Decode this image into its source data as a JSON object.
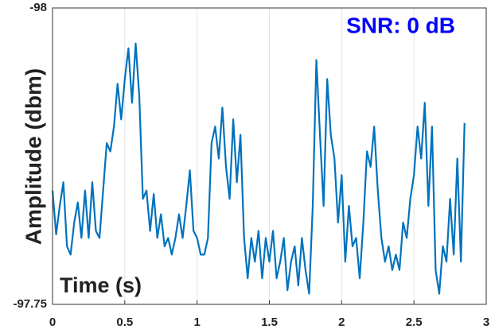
{
  "chart_data": {
    "type": "line",
    "title": "SNR: 0 dB",
    "title_color": "#0000ff",
    "xlabel": "Time (s)",
    "ylabel": "Amplitude (dbm)",
    "xlim": [
      0,
      3
    ],
    "xticks": [
      0,
      0.5,
      1,
      1.5,
      2,
      2.5,
      3
    ],
    "ylim": [
      -97.75,
      -98
    ],
    "yticks": [
      -98,
      -97.75
    ],
    "grid": "x",
    "x": [
      0,
      0.025,
      0.05,
      0.075,
      0.1,
      0.125,
      0.15,
      0.175,
      0.2,
      0.225,
      0.25,
      0.275,
      0.3,
      0.325,
      0.35,
      0.375,
      0.4,
      0.425,
      0.45,
      0.475,
      0.5,
      0.525,
      0.55,
      0.575,
      0.6,
      0.625,
      0.65,
      0.675,
      0.7,
      0.725,
      0.75,
      0.775,
      0.8,
      0.825,
      0.85,
      0.875,
      0.9,
      0.925,
      0.95,
      0.975,
      1,
      1.025,
      1.05,
      1.075,
      1.1,
      1.125,
      1.15,
      1.175,
      1.2,
      1.225,
      1.25,
      1.275,
      1.3,
      1.325,
      1.35,
      1.375,
      1.4,
      1.425,
      1.45,
      1.475,
      1.5,
      1.525,
      1.55,
      1.575,
      1.6,
      1.625,
      1.65,
      1.675,
      1.7,
      1.725,
      1.75,
      1.775,
      1.8,
      1.825,
      1.85,
      1.875,
      1.9,
      1.925,
      1.95,
      1.975,
      2,
      2.025,
      2.05,
      2.075,
      2.1,
      2.125,
      2.15,
      2.175,
      2.2,
      2.225,
      2.25,
      2.275,
      2.3,
      2.325,
      2.35,
      2.375,
      2.4,
      2.425,
      2.45,
      2.475,
      2.5,
      2.525,
      2.55,
      2.575,
      2.6,
      2.625,
      2.65,
      2.675,
      2.7,
      2.725,
      2.75,
      2.775,
      2.8,
      2.825,
      2.85
    ],
    "series": [
      {
        "color": "#0072bd",
        "values": [
          -97.846,
          -97.809,
          -97.833,
          -97.853,
          -97.799,
          -97.792,
          -97.819,
          -97.836,
          -97.806,
          -97.846,
          -97.806,
          -97.853,
          -97.812,
          -97.806,
          -97.846,
          -97.886,
          -97.879,
          -97.9,
          -97.936,
          -97.906,
          -97.94,
          -97.966,
          -97.92,
          -97.97,
          -97.926,
          -97.839,
          -97.846,
          -97.812,
          -97.843,
          -97.806,
          -97.826,
          -97.799,
          -97.806,
          -97.792,
          -97.806,
          -97.826,
          -97.806,
          -97.833,
          -97.863,
          -97.812,
          -97.806,
          -97.792,
          -97.792,
          -97.806,
          -97.886,
          -97.9,
          -97.873,
          -97.916,
          -97.866,
          -97.839,
          -97.906,
          -97.853,
          -97.893,
          -97.806,
          -97.772,
          -97.806,
          -97.786,
          -97.812,
          -97.772,
          -97.806,
          -97.786,
          -97.812,
          -97.772,
          -97.786,
          -97.806,
          -97.762,
          -97.786,
          -97.799,
          -97.766,
          -97.806,
          -97.779,
          -97.759,
          -97.833,
          -97.956,
          -97.893,
          -97.833,
          -97.94,
          -97.893,
          -97.873,
          -97.819,
          -97.859,
          -97.786,
          -97.833,
          -97.799,
          -97.806,
          -97.772,
          -97.819,
          -97.879,
          -97.866,
          -97.9,
          -97.846,
          -97.806,
          -97.786,
          -97.799,
          -97.779,
          -97.792,
          -97.779,
          -97.819,
          -97.806,
          -97.839,
          -97.859,
          -97.9,
          -97.873,
          -97.92,
          -97.833,
          -97.9,
          -97.779,
          -97.759,
          -97.799,
          -97.786,
          -97.839,
          -97.792,
          -97.873,
          -97.786,
          -97.903
        ]
      }
    ]
  }
}
